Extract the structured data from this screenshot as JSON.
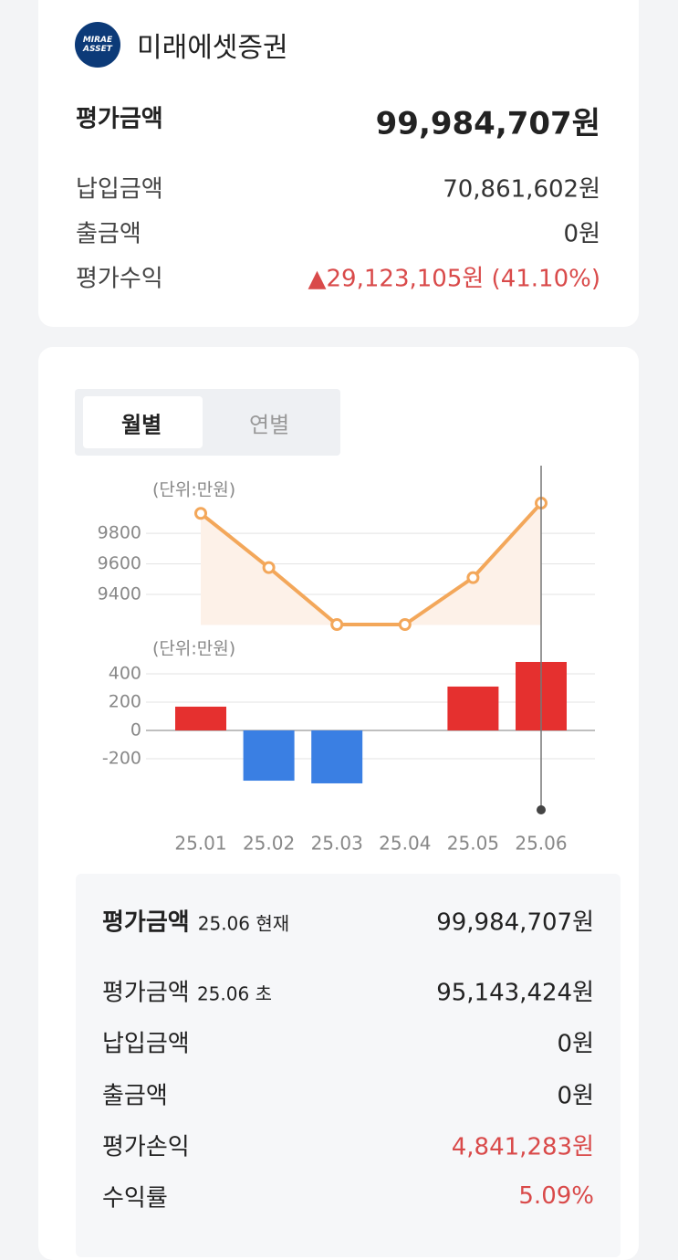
{
  "header": {
    "logo": [
      "MIRAE",
      "ASSET"
    ],
    "brand": "미래에셋증권"
  },
  "summary": {
    "label": "평가금액",
    "value": "99,984,707원",
    "rows": [
      {
        "label": "납입금액",
        "value": "70,861,602원"
      },
      {
        "label": "출금액",
        "value": "0원"
      },
      {
        "label": "평가수익",
        "value": "▲29,123,105원 (41.10%)",
        "highlight": true
      }
    ]
  },
  "tabs": [
    "월별",
    "연별"
  ],
  "chart_data": [
    {
      "type": "line",
      "unit_label": "(단위:만원)",
      "values": [
        9931,
        9576,
        9203,
        9203,
        9510,
        9998
      ],
      "color": "#f3a75a",
      "fill": "#fdf1e8",
      "ylim": [
        9200,
        10100
      ],
      "yticks": [
        9400,
        9600,
        9800
      ],
      "grid": true
    },
    {
      "type": "bar",
      "unit_label": "(단위:만원)",
      "categories": [
        "25.01",
        "25.02",
        "25.03",
        "25.04",
        "25.05",
        "25.06"
      ],
      "values": [
        168,
        -355,
        -374,
        0,
        310,
        484
      ],
      "positive_color": "#e5302f",
      "negative_color": "#3a7fe3",
      "ylim": [
        -450,
        500
      ],
      "yticks": [
        400,
        200,
        0,
        -200
      ],
      "grid": true
    }
  ],
  "detail": {
    "title": "평가금액",
    "title_note": "25.06 현재",
    "value": "99,984,707원",
    "rows": [
      {
        "label": "평가금액",
        "note": "25.06 초",
        "value": "95,143,424원"
      },
      {
        "label": "납입금액",
        "value": "0원"
      },
      {
        "label": "출금액",
        "value": "0원"
      },
      {
        "label": "평가손익",
        "value": "4,841,283원",
        "highlight": true
      },
      {
        "label": "수익률",
        "value": "5.09%",
        "highlight": true
      }
    ]
  }
}
